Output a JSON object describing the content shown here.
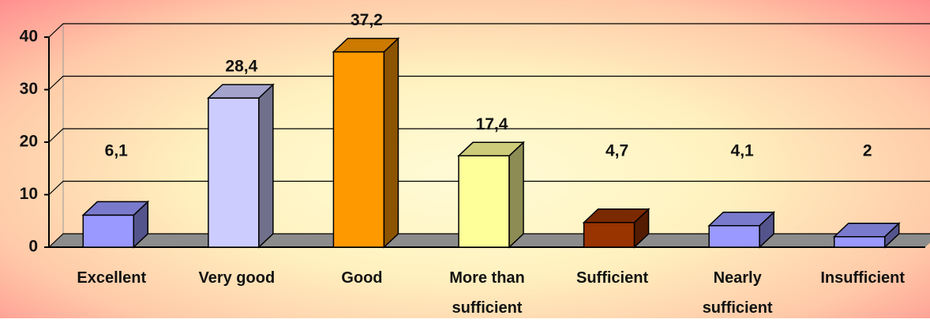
{
  "chart_data": {
    "type": "bar3d",
    "categories": [
      "Excellent",
      "Very good",
      "Good",
      "More than sufficient",
      "Sufficient",
      "Nearly sufficient",
      "Insufficient"
    ],
    "values": [
      6.1,
      28.4,
      37.2,
      17.4,
      4.7,
      4.1,
      2
    ],
    "value_labels": [
      "6,1",
      "28,4",
      "37,2",
      "17,4",
      "4,7",
      "4,1",
      "2"
    ],
    "colors": [
      "#9999ff",
      "#ccccff",
      "#ff9900",
      "#ffff99",
      "#993300",
      "#9999ff",
      "#9999ff"
    ],
    "ylim": [
      0,
      40
    ],
    "yticks": [
      0,
      10,
      20,
      30,
      40
    ],
    "grid": true
  }
}
